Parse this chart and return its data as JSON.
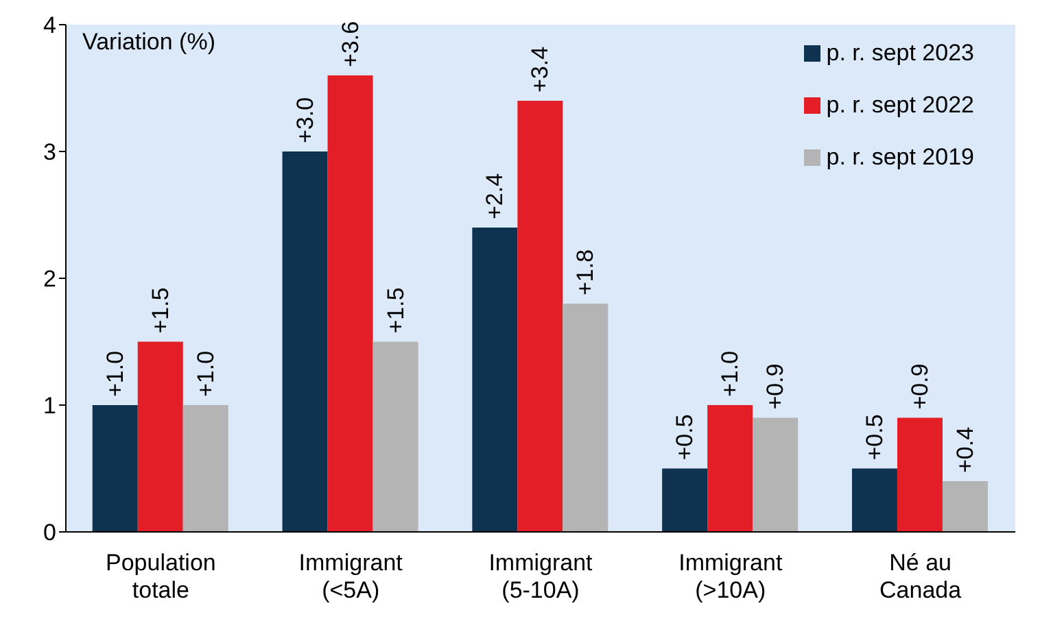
{
  "chart_data": {
    "type": "bar",
    "ylabel": "Variation (%)",
    "categories": [
      "Population\ntotale",
      "Immigrant\n(<5A)",
      "Immigrant\n(5-10A)",
      "Immigrant\n(>10A)",
      "Né au\nCanada"
    ],
    "series": [
      {
        "name": "p. r. sept 2023",
        "color": "#0d3350",
        "values": [
          1.0,
          3.0,
          2.4,
          0.5,
          0.5
        ],
        "value_labels": [
          "+1.0",
          "+3.0",
          "+2.4",
          "+0.5",
          "+0.5"
        ]
      },
      {
        "name": "p. r. sept 2022",
        "color": "#e31e26",
        "values": [
          1.5,
          3.6,
          3.4,
          1.0,
          0.9
        ],
        "value_labels": [
          "+1.5",
          "+3.6",
          "+3.4",
          "+1.0",
          "+0.9"
        ]
      },
      {
        "name": "p. r. sept 2019",
        "color": "#b4b4b4",
        "values": [
          1.0,
          1.5,
          1.8,
          0.9,
          0.4
        ],
        "value_labels": [
          "+1.0",
          "+1.5",
          "+1.8",
          "+0.9",
          "+0.4"
        ]
      }
    ],
    "ylim": [
      0,
      4
    ],
    "yticks": [
      0,
      1,
      2,
      3,
      4
    ],
    "legend": "top right"
  }
}
